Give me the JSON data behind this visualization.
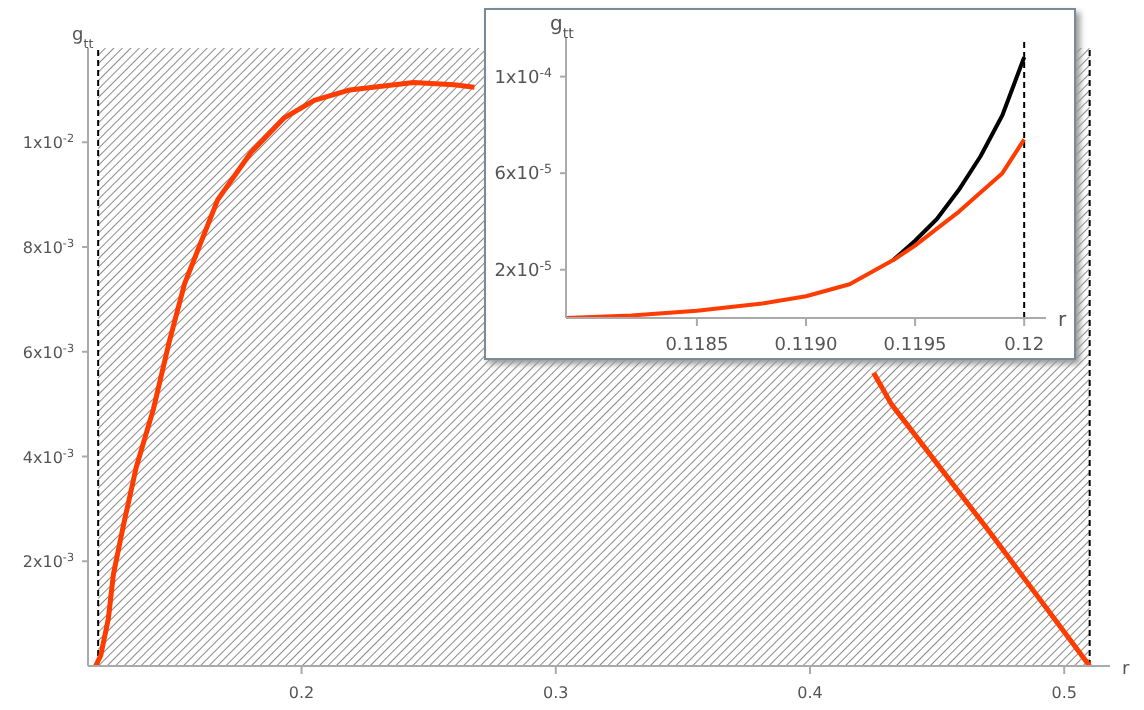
{
  "chart_data": [
    {
      "type": "line",
      "xlabel": "r",
      "ylabel": "g$_{tt}$",
      "xlim": [
        0.116,
        0.518
      ],
      "ylim": [
        0,
        0.0118
      ],
      "xticks": [
        0.2,
        0.3,
        0.4,
        0.5
      ],
      "yticks": [
        {
          "value": 0.002,
          "label": "2x10$^{-3}$"
        },
        {
          "value": 0.004,
          "label": "4x10$^{-3}$"
        },
        {
          "value": 0.006,
          "label": "6x10$^{-3}$"
        },
        {
          "value": 0.008,
          "label": "8x10$^{-3}$"
        },
        {
          "value": 0.01,
          "label": "1x10$^{-2}$"
        }
      ],
      "series": [
        {
          "color": "#ff3c00",
          "x": [
            0.119,
            0.121,
            0.124,
            0.126,
            0.13,
            0.135,
            0.1417,
            0.148,
            0.154,
            0.167,
            0.18,
            0.193,
            0.205,
            0.219,
            0.244,
            0.26,
            0.268,
            0.35,
            0.425,
            0.432,
            0.47,
            0.51
          ],
          "values": [
            0,
            0.0002,
            0.0009,
            0.00175,
            0.0027,
            0.0038,
            0.0049,
            0.0062,
            0.0073,
            0.0089,
            0.0098,
            0.01046,
            0.0108,
            0.011,
            0.01114,
            0.0111,
            0.01105,
            null,
            0.0056,
            0.005,
            0.0026,
            0
          ]
        }
      ],
      "bands": [
        {
          "axis": "x",
          "from": 0.12,
          "to": 0.51,
          "color": "#8a8a8a"
        }
      ],
      "ref_lines": [
        {
          "axis": "x",
          "value": 0.12,
          "line_style": "dashed",
          "color": "#000000"
        },
        {
          "axis": "x",
          "value": 0.51,
          "line_style": "dashed",
          "color": "#000000"
        }
      ],
      "grid": false,
      "legend": false,
      "marker": "none"
    },
    {
      "type": "line",
      "xlabel": "r",
      "ylabel": "g$_{tt}$",
      "xlim": [
        0.1179,
        0.1201
      ],
      "ylim": [
        0,
        0.000116
      ],
      "xticks": [
        0.1185,
        {
          "value": 0.119,
          "label": "0.1190"
        },
        0.1195,
        0.12
      ],
      "yticks": [
        {
          "value": 2e-05,
          "label": "2x10$^{-5}$"
        },
        {
          "value": 6e-05,
          "label": "6x10$^{-5}$"
        },
        {
          "value": 0.0001,
          "label": "1x10$^{-4}$"
        }
      ],
      "series": [
        {
          "color": "#000000",
          "x": [
            0.1194,
            0.1195,
            0.1196,
            0.1197,
            0.1198,
            0.1199,
            0.12
          ],
          "values": [
            2.4e-05,
            3.2e-05,
            4.1e-05,
            5.3e-05,
            6.7e-05,
            8.4e-05,
            0.000108
          ]
        },
        {
          "color": "#ff3c00",
          "x": [
            0.1179,
            0.1182,
            0.1185,
            0.1188,
            0.119,
            0.1192,
            0.1194,
            0.1195,
            0.1196,
            0.1197,
            0.1198,
            0.1199,
            0.12
          ],
          "values": [
            0,
            1e-06,
            3e-06,
            6e-06,
            9e-06,
            1.4e-05,
            2.4e-05,
            3e-05,
            3.7e-05,
            4.4e-05,
            5.2e-05,
            6e-05,
            7.4e-05
          ]
        }
      ],
      "ref_lines": [
        {
          "axis": "x",
          "value": 0.12,
          "line_style": "dashed",
          "color": "#000000"
        }
      ],
      "grid": false,
      "legend": false,
      "marker": "none"
    }
  ]
}
